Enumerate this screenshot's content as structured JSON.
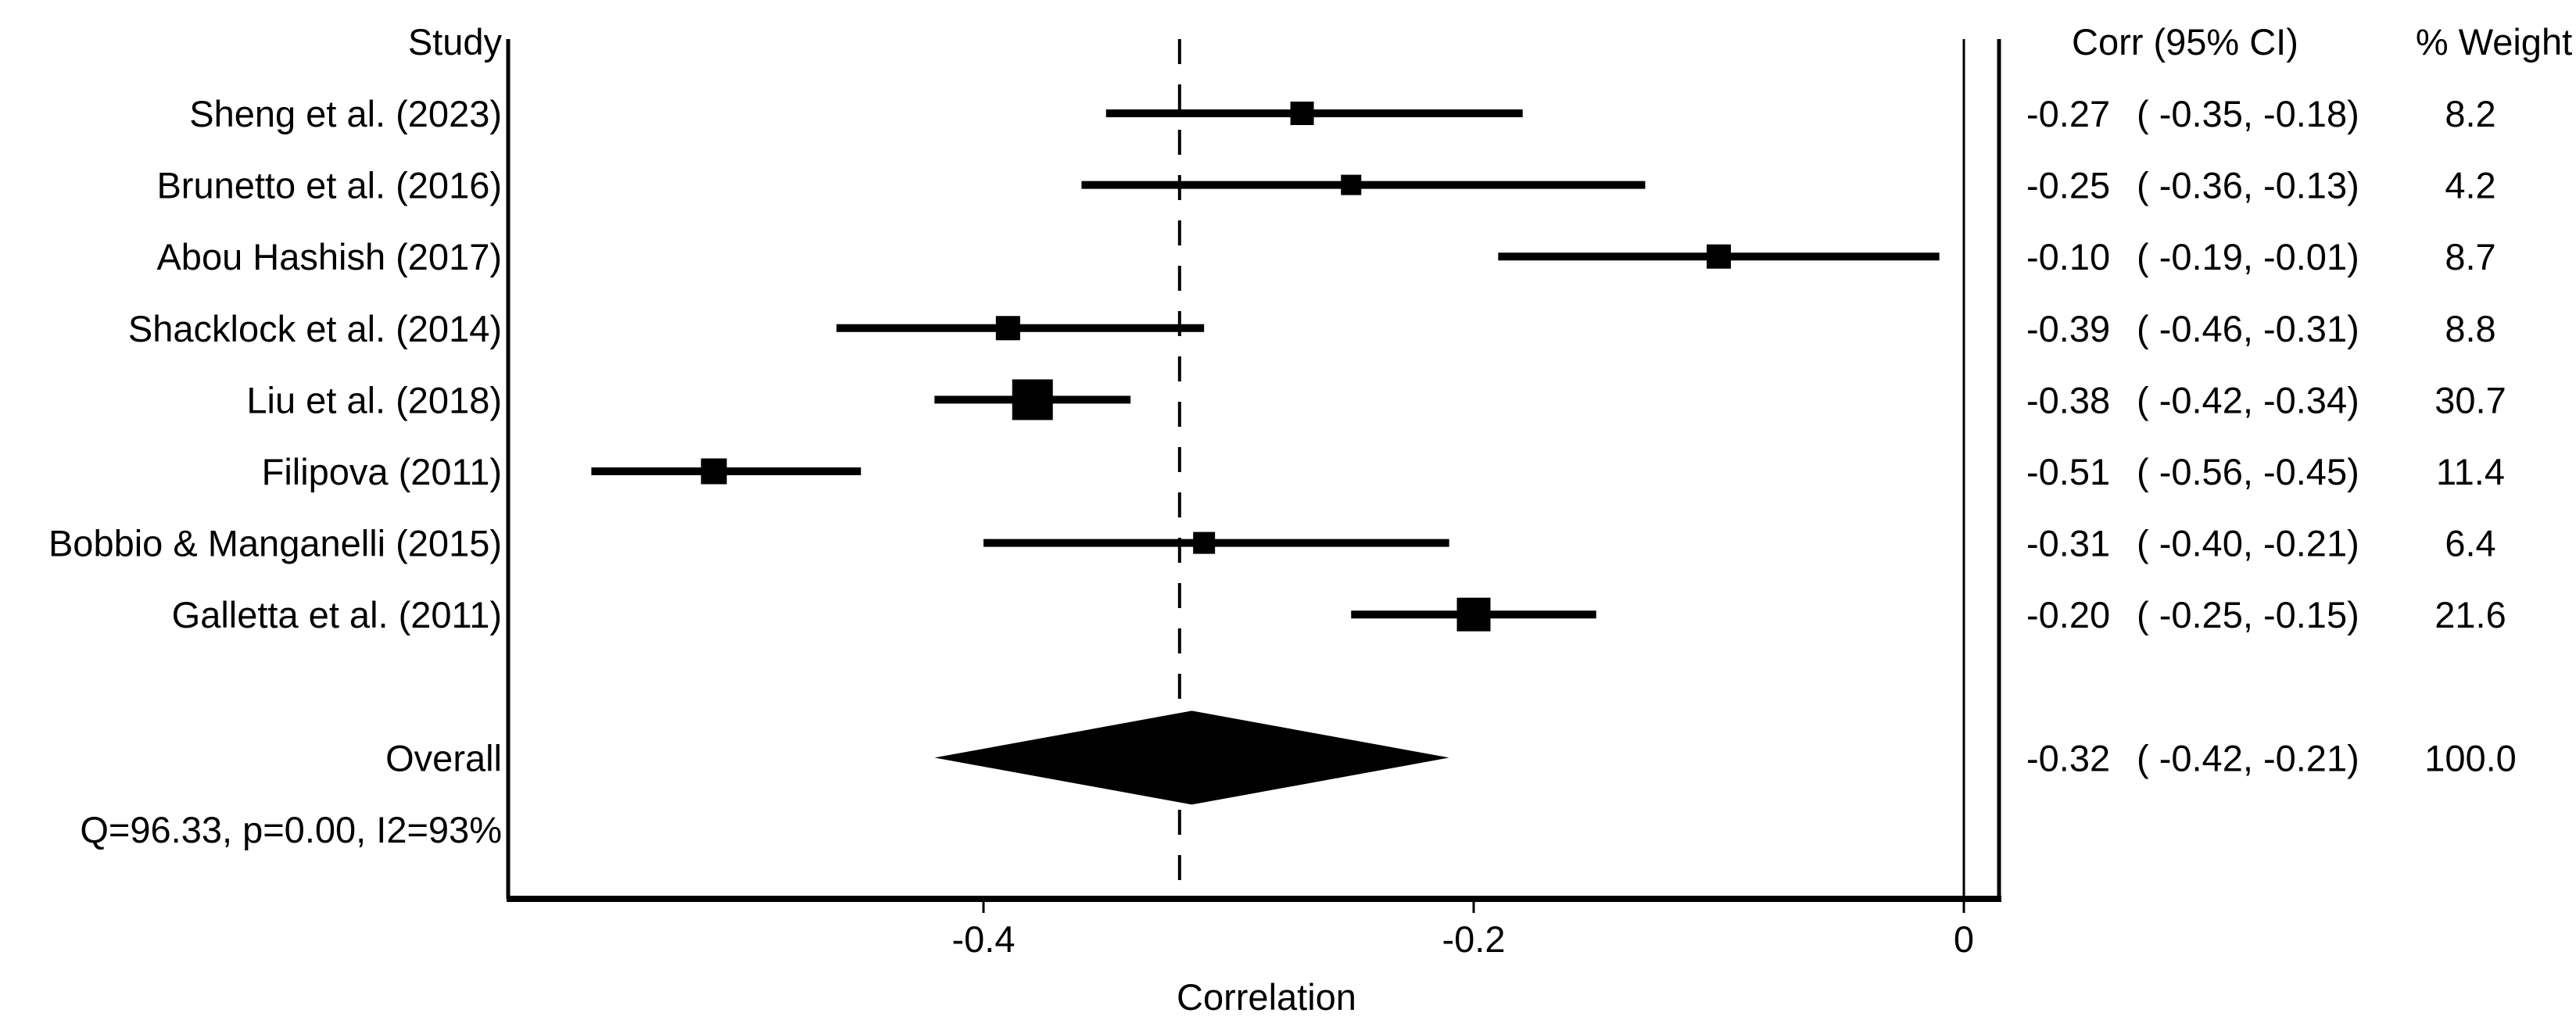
{
  "chart_data": {
    "type": "forest",
    "title": "",
    "xlabel": "Correlation",
    "header": {
      "study": "Study",
      "corr": "Corr (95% CI)",
      "weight": "% Weight"
    },
    "x_axis": {
      "ticks": [
        {
          "value": -0.4,
          "label": "-0.4"
        },
        {
          "value": -0.2,
          "label": "-0.2"
        },
        {
          "value": 0,
          "label": "0"
        }
      ],
      "range": [
        -0.594,
        0.015
      ],
      "reference_line_value": 0,
      "overall_dashed_line_value": -0.32
    },
    "studies": [
      {
        "label": "Sheng et al. (2023)",
        "corr": -0.27,
        "ci_low": -0.35,
        "ci_high": -0.18,
        "corr_text": "-0.27",
        "ci_text": "( -0.35, -0.18)",
        "weight": 8.2,
        "weight_text": "8.2"
      },
      {
        "label": "Brunetto et al. (2016)",
        "corr": -0.25,
        "ci_low": -0.36,
        "ci_high": -0.13,
        "corr_text": "-0.25",
        "ci_text": "( -0.36, -0.13)",
        "weight": 4.2,
        "weight_text": "4.2"
      },
      {
        "label": "Abou Hashish (2017)",
        "corr": -0.1,
        "ci_low": -0.19,
        "ci_high": -0.01,
        "corr_text": "-0.10",
        "ci_text": "( -0.19, -0.01)",
        "weight": 8.7,
        "weight_text": "8.7"
      },
      {
        "label": "Shacklock et al. (2014)",
        "corr": -0.39,
        "ci_low": -0.46,
        "ci_high": -0.31,
        "corr_text": "-0.39",
        "ci_text": "( -0.46, -0.31)",
        "weight": 8.8,
        "weight_text": "8.8"
      },
      {
        "label": "Liu et al. (2018)",
        "corr": -0.38,
        "ci_low": -0.42,
        "ci_high": -0.34,
        "corr_text": "-0.38",
        "ci_text": "( -0.42, -0.34)",
        "weight": 30.7,
        "weight_text": "30.7"
      },
      {
        "label": "Filipova (2011)",
        "corr": -0.51,
        "ci_low": -0.56,
        "ci_high": -0.45,
        "corr_text": "-0.51",
        "ci_text": "( -0.56, -0.45)",
        "weight": 11.4,
        "weight_text": "11.4"
      },
      {
        "label": "Bobbio & Manganelli (2015)",
        "corr": -0.31,
        "ci_low": -0.4,
        "ci_high": -0.21,
        "corr_text": "-0.31",
        "ci_text": "( -0.40, -0.21)",
        "weight": 6.4,
        "weight_text": "6.4"
      },
      {
        "label": "Galletta et al. (2011)",
        "corr": -0.2,
        "ci_low": -0.25,
        "ci_high": -0.15,
        "corr_text": "-0.20",
        "ci_text": "( -0.25, -0.15)",
        "weight": 21.6,
        "weight_text": "21.6"
      }
    ],
    "overall": {
      "label": "Overall",
      "corr": -0.32,
      "ci_low": -0.42,
      "ci_high": -0.21,
      "corr_text": "-0.32",
      "ci_text": "( -0.42, -0.21)",
      "weight_text": "100.0"
    },
    "heterogeneity": "Q=96.33, p=0.00, I2=93%",
    "colors": {
      "ink": "#000000",
      "background": "#ffffff"
    },
    "legend": null,
    "grid": false
  }
}
